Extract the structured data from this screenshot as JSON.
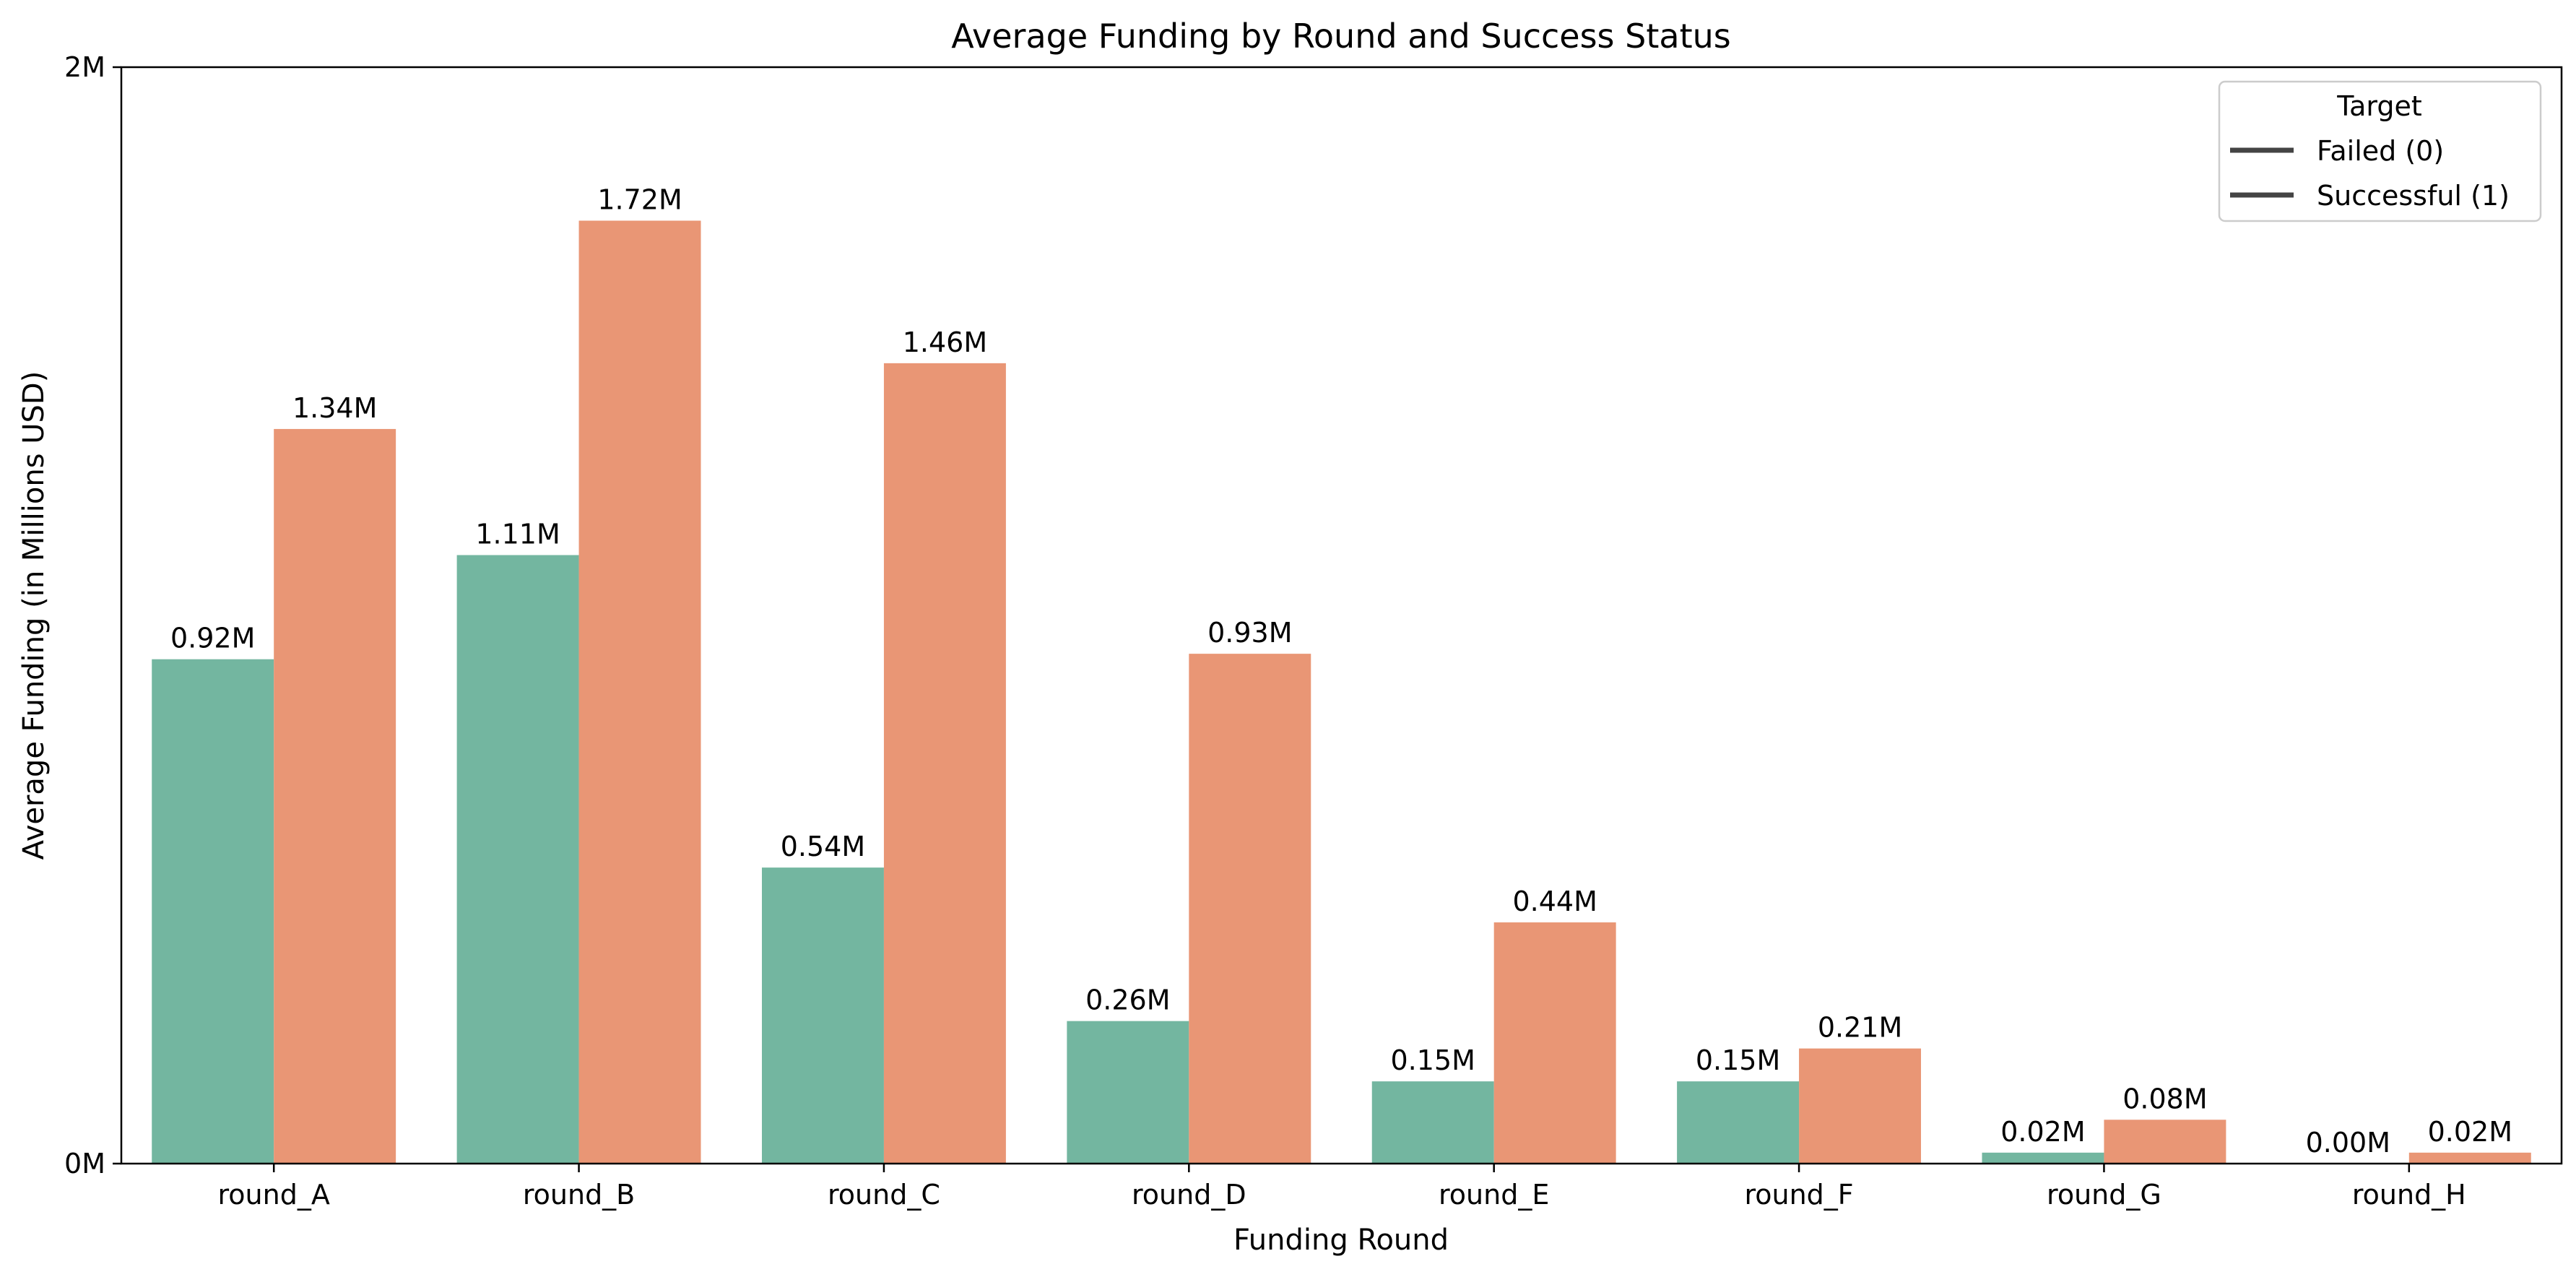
{
  "chart_data": {
    "type": "bar",
    "title": "Average Funding by Round and Success Status",
    "xlabel": "Funding Round",
    "ylabel": "Average Funding (in Millions USD)",
    "categories": [
      "round_A",
      "round_B",
      "round_C",
      "round_D",
      "round_E",
      "round_F",
      "round_G",
      "round_H"
    ],
    "series": [
      {
        "name": "Failed (0)",
        "color": "#73b6a0",
        "values": [
          0.92,
          1.11,
          0.54,
          0.26,
          0.15,
          0.15,
          0.02,
          0.0
        ],
        "labels": [
          "0.92M",
          "1.11M",
          "0.54M",
          "0.26M",
          "0.15M",
          "0.15M",
          "0.02M",
          "0.00M"
        ]
      },
      {
        "name": "Successful (1)",
        "color": "#e99675",
        "values": [
          1.34,
          1.72,
          1.46,
          0.93,
          0.44,
          0.21,
          0.08,
          0.02
        ],
        "labels": [
          "1.34M",
          "1.72M",
          "1.46M",
          "0.93M",
          "0.44M",
          "0.21M",
          "0.08M",
          "0.02M"
        ]
      }
    ],
    "ylim": [
      0,
      2
    ],
    "yticks": [
      0,
      2
    ],
    "ytick_labels": [
      "0M",
      "2M"
    ],
    "grid": false,
    "legend": {
      "title": "Target",
      "placement": "top-right",
      "line_color": "#444444"
    }
  }
}
